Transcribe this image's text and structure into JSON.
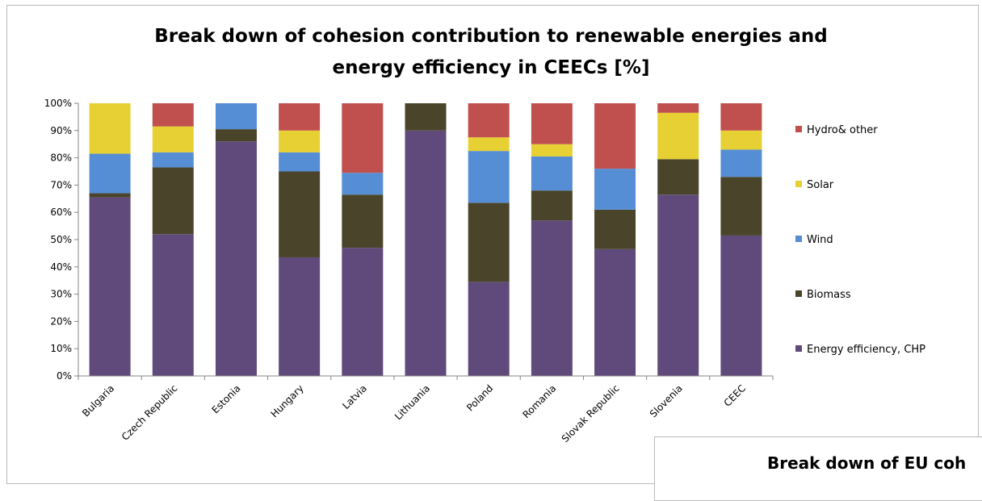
{
  "chart_data": {
    "type": "bar",
    "stacked": true,
    "normalized": true,
    "title": "Break down of cohesion contribution to renewable energies and energy efficiency in CEECs [%]",
    "title_lines": [
      "Break down of cohesion contribution to renewable energies and",
      "energy efficiency in CEECs [%]"
    ],
    "xlabel": "",
    "ylabel": "",
    "ylim": [
      0,
      100
    ],
    "yticks": [
      "0%",
      "10%",
      "20%",
      "30%",
      "40%",
      "50%",
      "60%",
      "70%",
      "80%",
      "90%",
      "100%"
    ],
    "grid": false,
    "legend_position": "right",
    "categories": [
      "Bulgaria",
      "Czech Republic",
      "Estonia",
      "Hungary",
      "Latvia",
      "Lithuania",
      "Poland",
      "Romania",
      "Slovak Republic",
      "Slovenia",
      "CEEC"
    ],
    "series": [
      {
        "name": "Energy efficiency, CHP",
        "color": "#604A7B",
        "values": [
          65.5,
          52,
          86,
          43.5,
          47,
          90,
          34.5,
          57,
          46.5,
          66.5,
          51.5
        ]
      },
      {
        "name": "Biomass",
        "color": "#4A452A",
        "values": [
          1.5,
          24.5,
          4.5,
          31.5,
          19.5,
          10,
          29,
          11,
          14.5,
          13,
          21.5
        ]
      },
      {
        "name": "Wind",
        "color": "#558ED5",
        "values": [
          14.5,
          5.5,
          9.5,
          7,
          8,
          0,
          19,
          12.5,
          15,
          0,
          10
        ]
      },
      {
        "name": "Solar",
        "color": "#E6D033",
        "values": [
          18.5,
          9.5,
          0,
          8,
          0,
          0,
          5,
          4.5,
          0,
          17,
          7
        ]
      },
      {
        "name": "Hydro& other",
        "color": "#C0504D",
        "values": [
          0,
          8.5,
          0,
          10,
          25.5,
          0,
          12.5,
          15,
          24,
          3.5,
          10
        ]
      }
    ]
  },
  "inset": {
    "title": "Break down of EU coh"
  }
}
